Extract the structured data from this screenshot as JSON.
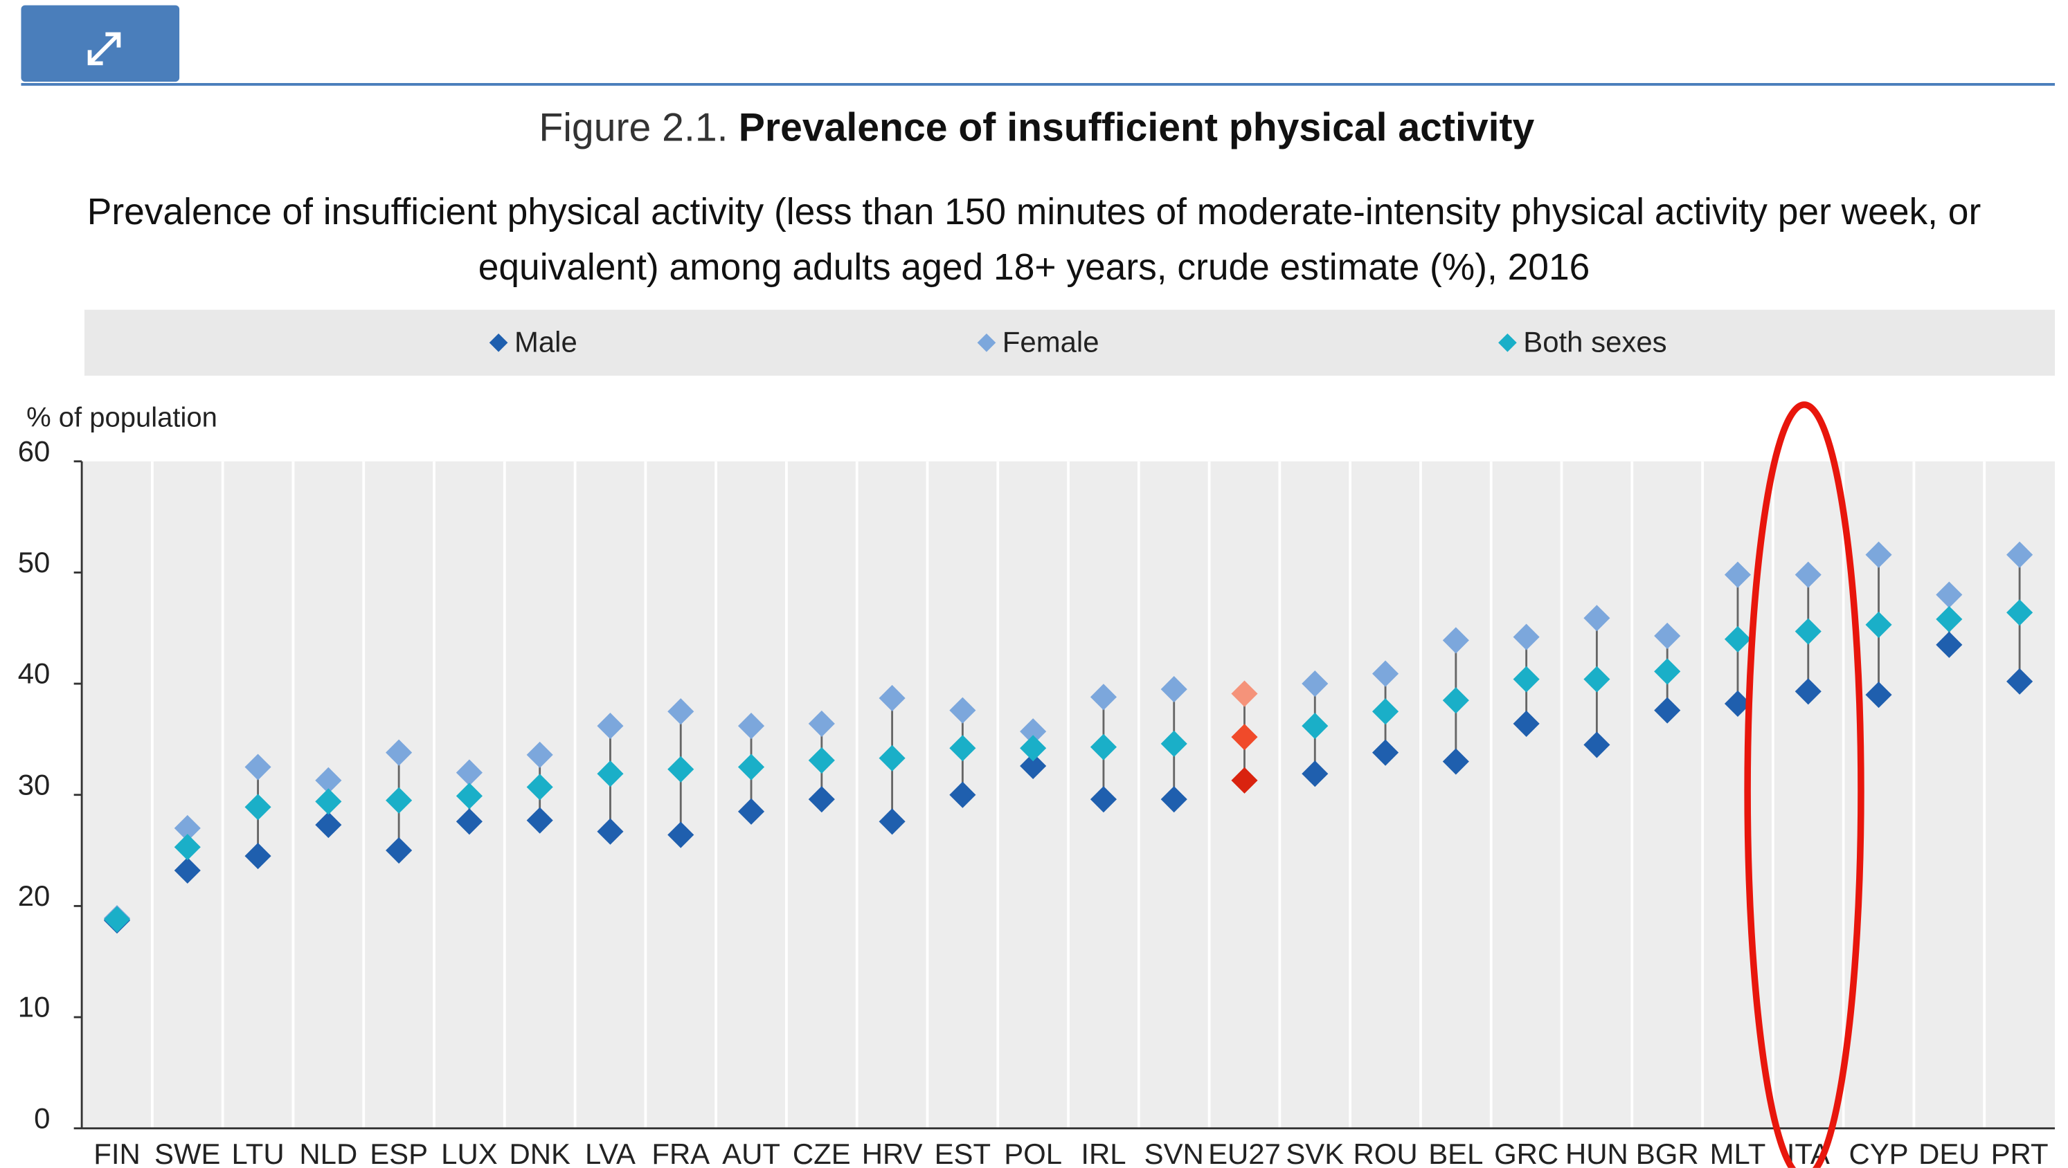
{
  "chart_data": {
    "type": "dot_range",
    "title_prefix": "Figure 2.1.",
    "title": "Prevalence of insufficient physical activity",
    "subtitle": "Prevalence of insufficient physical activity (less than 150 minutes of moderate-intensity physical activity per week, or equivalent) among adults aged 18+ years, crude estimate (%), 2016",
    "y_label": "% of population",
    "categories": [
      "FIN",
      "SWE",
      "LTU",
      "NLD",
      "ESP",
      "LUX",
      "DNK",
      "LVA",
      "FRA",
      "AUT",
      "CZE",
      "HRV",
      "EST",
      "POL",
      "IRL",
      "SVN",
      "EU27",
      "SVK",
      "ROU",
      "BEL",
      "GRC",
      "HUN",
      "BGR",
      "MLT",
      "ITA",
      "CYP",
      "DEU",
      "PRT"
    ],
    "highlight": 16,
    "series": [
      {
        "name": "Male",
        "color": "#1f5fae",
        "highlight_color": "#d9230f",
        "values": [
          18.7,
          23.2,
          24.5,
          27.3,
          25.0,
          27.6,
          27.7,
          26.7,
          26.4,
          28.5,
          29.6,
          27.6,
          30.0,
          32.6,
          29.6,
          29.6,
          31.3,
          31.9,
          33.8,
          33.0,
          36.4,
          34.5,
          37.6,
          38.2,
          39.3,
          39.0,
          43.5,
          40.2
        ]
      },
      {
        "name": "Female",
        "color": "#7ca7dc",
        "highlight_color": "#f5937a",
        "values": [
          18.9,
          27.0,
          32.5,
          31.3,
          33.8,
          32.0,
          33.6,
          36.2,
          37.5,
          36.2,
          36.4,
          38.7,
          37.6,
          35.7,
          38.8,
          39.5,
          39.1,
          40.0,
          40.9,
          43.9,
          44.2,
          45.9,
          44.3,
          49.8,
          49.8,
          51.6,
          48.0,
          51.6
        ]
      },
      {
        "name": "Both sexes",
        "color": "#1aafc8",
        "highlight_color": "#f04a2a",
        "values": [
          18.8,
          25.3,
          28.9,
          29.4,
          29.5,
          29.9,
          30.7,
          31.9,
          32.3,
          32.5,
          33.1,
          33.3,
          34.2,
          34.2,
          34.3,
          34.6,
          35.2,
          36.2,
          37.5,
          38.5,
          40.4,
          40.4,
          41.1,
          44.0,
          44.7,
          45.3,
          45.8,
          46.4
        ]
      }
    ],
    "ylim": [
      0,
      60
    ],
    "yticks": [
      0,
      10,
      20,
      30,
      40,
      50,
      60
    ],
    "grid": false
  }
}
